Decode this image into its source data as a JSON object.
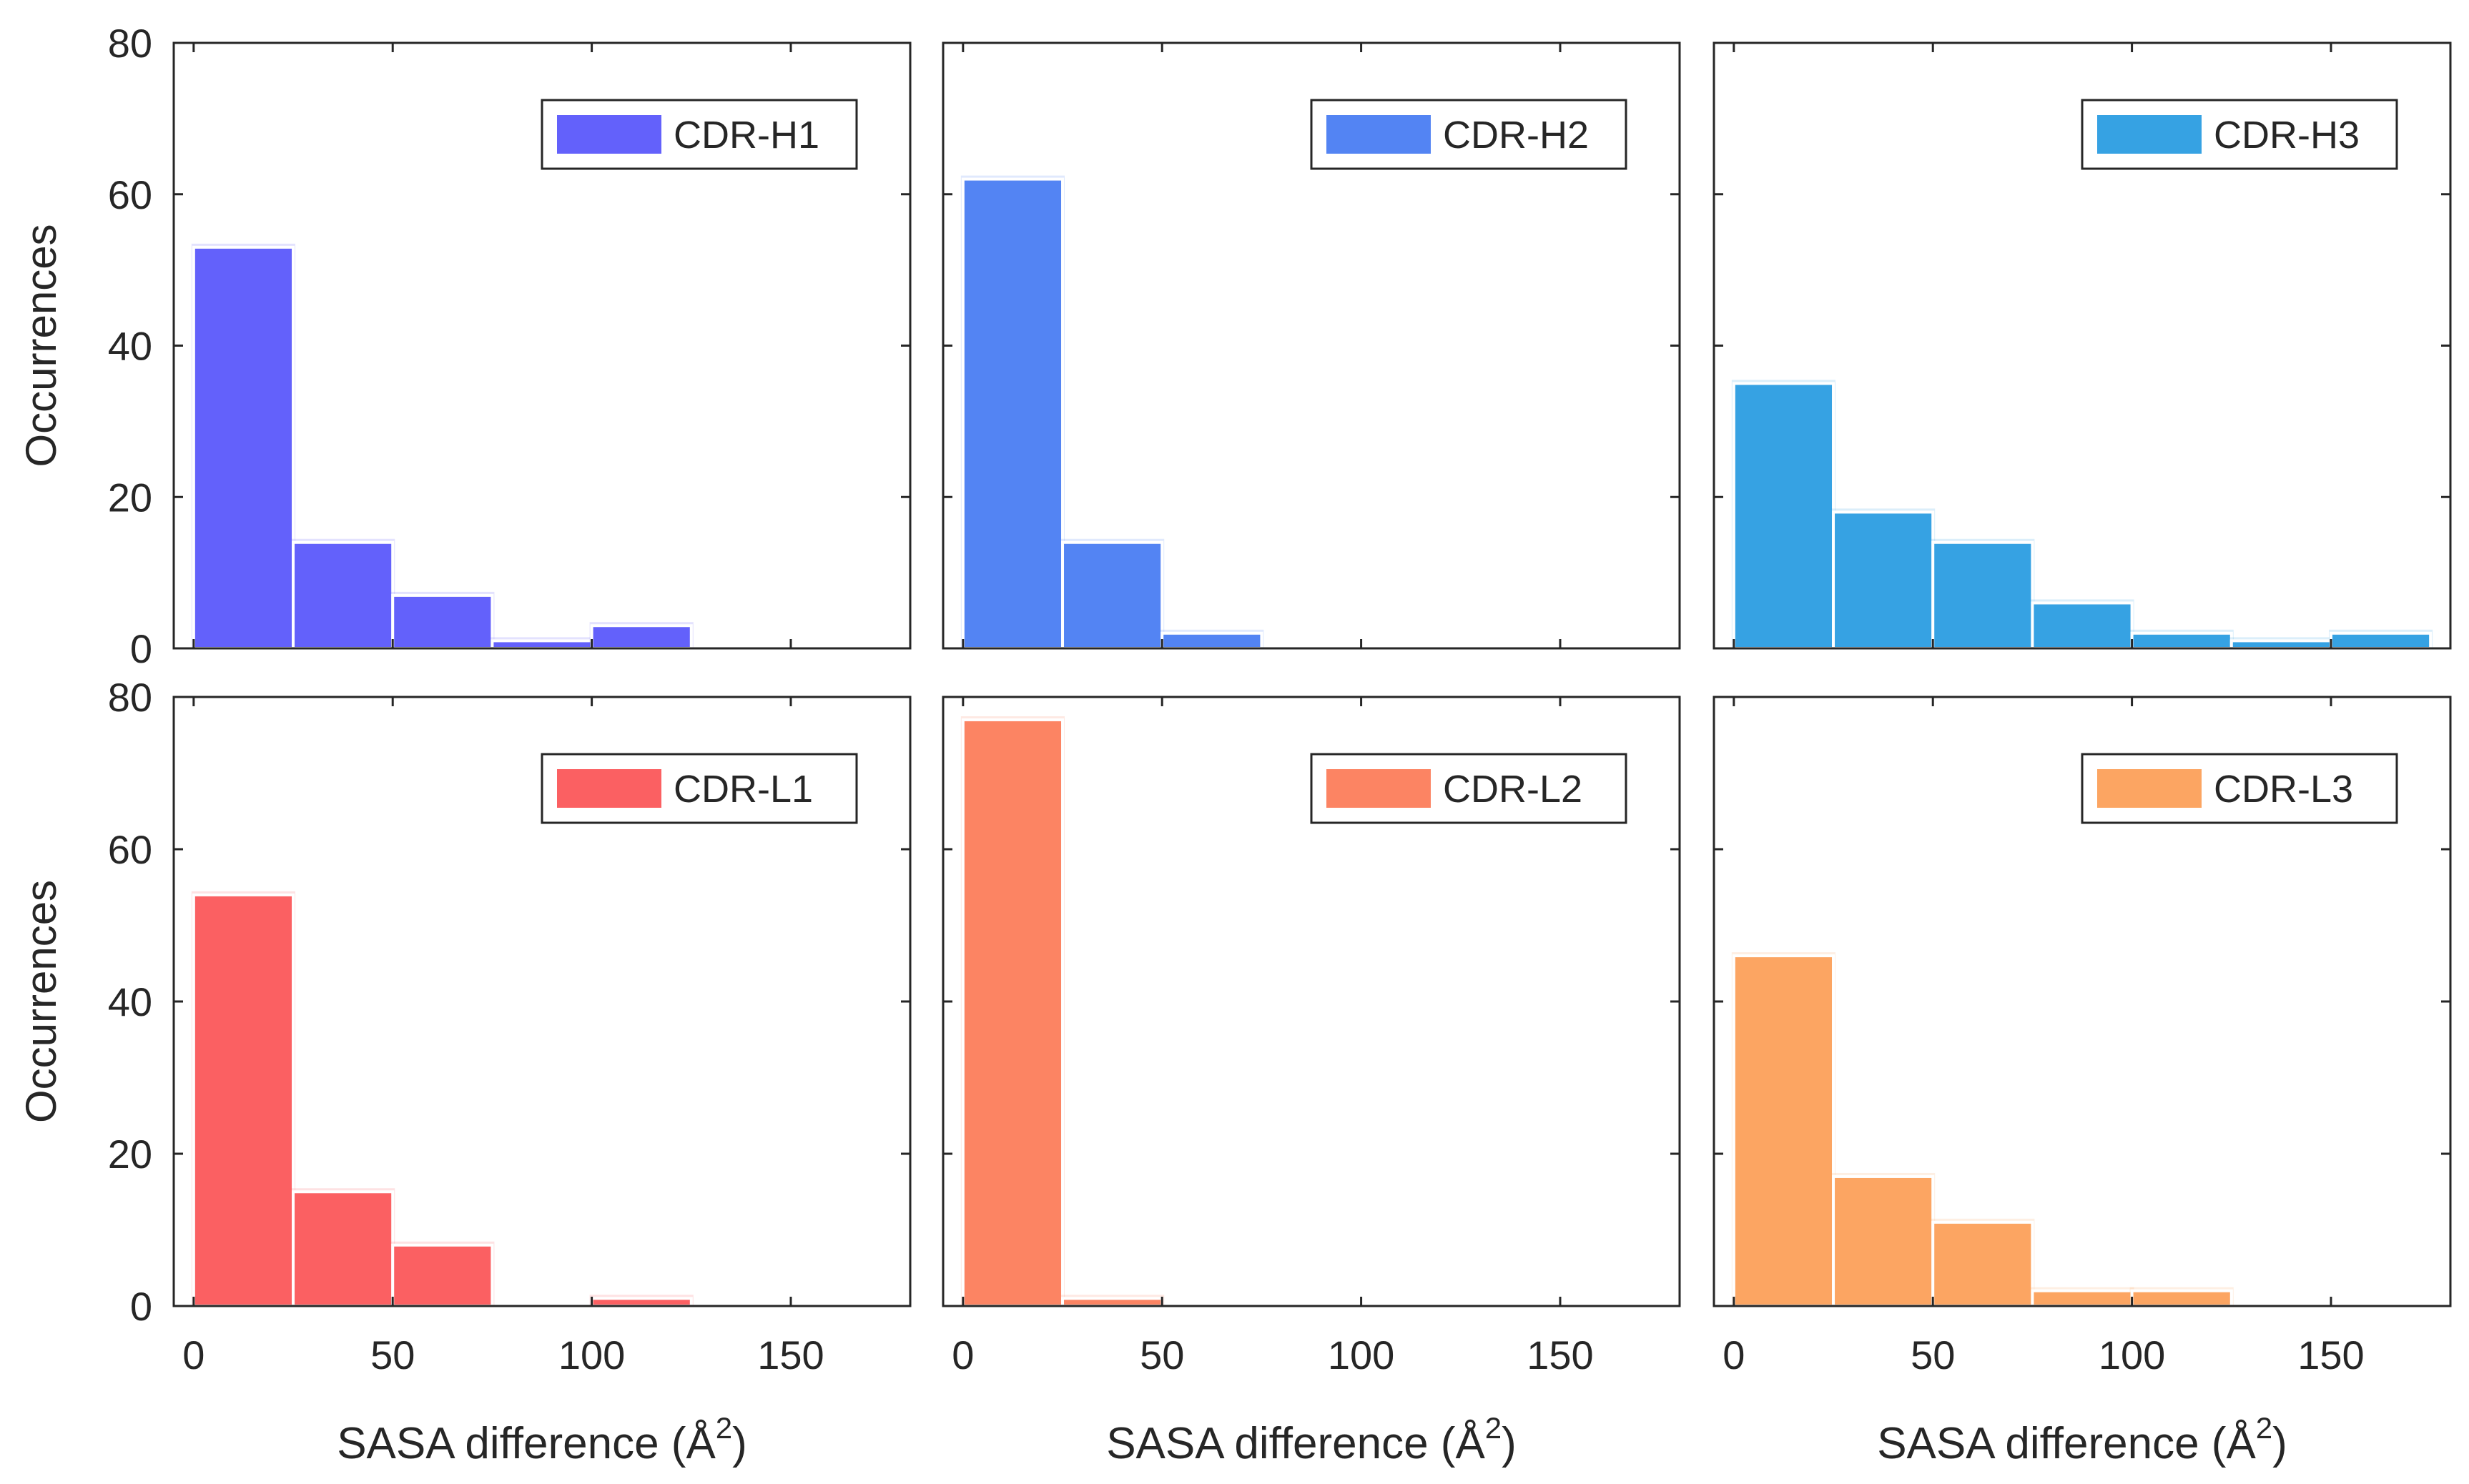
{
  "figure": {
    "ylabel": "Occurrences",
    "xlabel": "SASA difference (Å",
    "xlabel_superscript": "2",
    "xlabel_close": ")"
  },
  "chart_data": [
    {
      "type": "bar",
      "legend": "CDR-H1",
      "color": "#6361fb",
      "bin_edges": [
        0,
        25,
        50,
        75,
        100,
        125,
        150,
        175
      ],
      "values": [
        53,
        14,
        7,
        1,
        3,
        0,
        0
      ],
      "xlim": [
        -5,
        180
      ],
      "ylim": [
        0,
        80
      ],
      "xticks": [
        0,
        50,
        100,
        150
      ],
      "yticks": [
        0,
        20,
        40,
        60,
        80
      ],
      "xlabel": "",
      "ylabel": "Occurrences",
      "legend_position": "top-right"
    },
    {
      "type": "bar",
      "legend": "CDR-H2",
      "color": "#5384f3",
      "bin_edges": [
        0,
        25,
        50,
        75,
        100,
        125,
        150,
        175
      ],
      "values": [
        62,
        14,
        2,
        0,
        0,
        0,
        0
      ],
      "xlim": [
        -5,
        180
      ],
      "ylim": [
        0,
        80
      ],
      "xticks": [
        0,
        50,
        100,
        150
      ],
      "yticks": [
        0,
        20,
        40,
        60,
        80
      ],
      "xlabel": "",
      "ylabel": "",
      "legend_position": "top-right"
    },
    {
      "type": "bar",
      "legend": "CDR-H3",
      "color": "#36a2e3",
      "bin_edges": [
        0,
        25,
        50,
        75,
        100,
        125,
        150,
        175
      ],
      "values": [
        35,
        18,
        14,
        6,
        2,
        1,
        2
      ],
      "xlim": [
        -5,
        180
      ],
      "ylim": [
        0,
        80
      ],
      "xticks": [
        0,
        50,
        100,
        150
      ],
      "yticks": [
        0,
        20,
        40,
        60,
        80
      ],
      "xlabel": "",
      "ylabel": "",
      "legend_position": "top-right"
    },
    {
      "type": "bar",
      "legend": "CDR-L1",
      "color": "#fb6062",
      "bin_edges": [
        0,
        25,
        50,
        75,
        100,
        125,
        150,
        175
      ],
      "values": [
        54,
        15,
        8,
        0,
        1,
        0,
        0
      ],
      "xlim": [
        -5,
        180
      ],
      "ylim": [
        0,
        80
      ],
      "xticks": [
        0,
        50,
        100,
        150
      ],
      "yticks": [
        0,
        20,
        40,
        60,
        80
      ],
      "xlabel": "SASA difference (Å²)",
      "ylabel": "Occurrences",
      "legend_position": "top-right"
    },
    {
      "type": "bar",
      "legend": "CDR-L2",
      "color": "#fc8463",
      "bin_edges": [
        0,
        25,
        50,
        75,
        100,
        125,
        150,
        175
      ],
      "values": [
        77,
        1,
        0,
        0,
        0,
        0,
        0
      ],
      "xlim": [
        -5,
        180
      ],
      "ylim": [
        0,
        80
      ],
      "xticks": [
        0,
        50,
        100,
        150
      ],
      "yticks": [
        0,
        20,
        40,
        60,
        80
      ],
      "xlabel": "SASA difference (Å²)",
      "ylabel": "",
      "legend_position": "top-right"
    },
    {
      "type": "bar",
      "legend": "CDR-L3",
      "color": "#fca562",
      "bin_edges": [
        0,
        25,
        50,
        75,
        100,
        125,
        150,
        175
      ],
      "values": [
        46,
        17,
        11,
        2,
        2,
        0,
        0
      ],
      "xlim": [
        -5,
        180
      ],
      "ylim": [
        0,
        80
      ],
      "xticks": [
        0,
        50,
        100,
        150
      ],
      "yticks": [
        0,
        20,
        40,
        60,
        80
      ],
      "xlabel": "SASA difference (Å²)",
      "ylabel": "",
      "legend_position": "top-right"
    }
  ]
}
